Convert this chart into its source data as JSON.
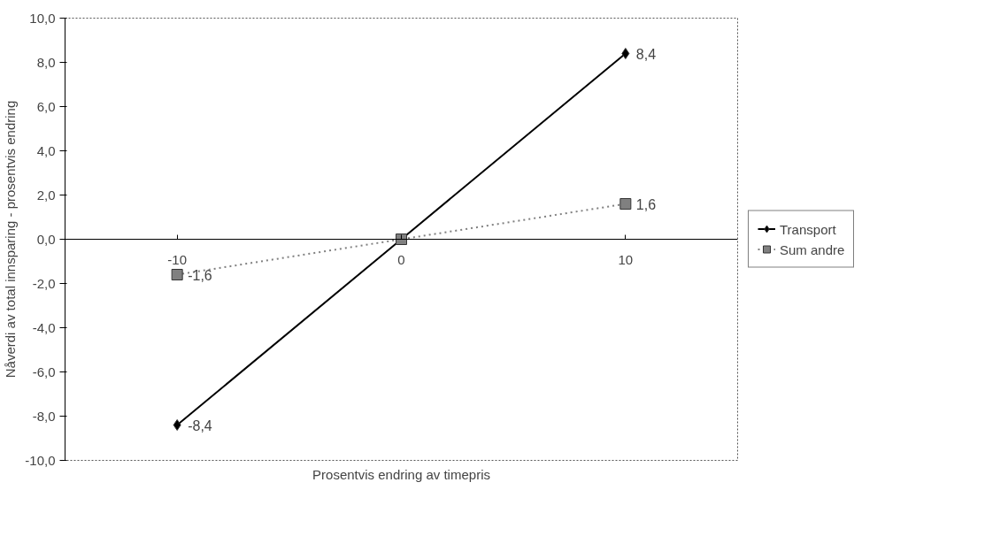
{
  "chart_data": {
    "type": "line",
    "xlabel": "Prosentvis endring av timepris",
    "ylabel": "Nåverdi av total innsparing - prosentvis endring",
    "categories": [
      "-10",
      "0",
      "10"
    ],
    "series": [
      {
        "name": "Transport",
        "color": "#000000",
        "marker": "diamond",
        "values": [
          -8.4,
          0,
          8.4
        ],
        "value_labels": [
          "-8,4",
          null,
          "8,4"
        ]
      },
      {
        "name": "Sum andre",
        "color": "#808080",
        "marker": "square",
        "line_style": "dotted",
        "values": [
          -1.6,
          0,
          1.6
        ],
        "value_labels": [
          "-1,6",
          null,
          "1,6"
        ]
      }
    ],
    "ylim": [
      -10,
      10
    ],
    "yticks": [
      {
        "value": -10,
        "label": "-10,0"
      },
      {
        "value": -8,
        "label": "-8,0"
      },
      {
        "value": -6,
        "label": "-6,0"
      },
      {
        "value": -4,
        "label": "-4,0"
      },
      {
        "value": -2,
        "label": "-2,0"
      },
      {
        "value": 0,
        "label": "0,0"
      },
      {
        "value": 2,
        "label": "2,0"
      },
      {
        "value": 4,
        "label": "4,0"
      },
      {
        "value": 6,
        "label": "6,0"
      },
      {
        "value": 8,
        "label": "8,0"
      },
      {
        "value": 10,
        "label": "10,0"
      }
    ],
    "grid": false,
    "legend": "right"
  }
}
